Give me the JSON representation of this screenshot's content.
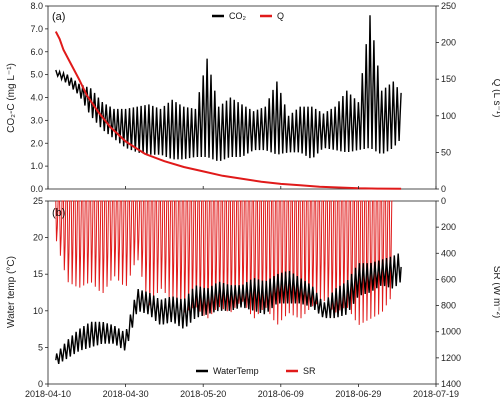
{
  "chart_data": [
    {
      "type": "line",
      "panel_label": "(a)",
      "ylabel_left": "CO₂-C (mg L⁻¹)",
      "ylabel_right": "Q (L s⁻¹)",
      "ylim_left": [
        0,
        8
      ],
      "yticks_left": [
        "0.0",
        "1.0",
        "2.0",
        "3.0",
        "4.0",
        "5.0",
        "6.0",
        "7.0",
        "8.0"
      ],
      "ylim_right": [
        0,
        250
      ],
      "yticks_right": [
        "0",
        "50",
        "100",
        "150",
        "200",
        "250"
      ],
      "legend_position": "top-center",
      "series": [
        {
          "name": "CO₂",
          "axis": "left",
          "color": "#000000",
          "x": [
            "2018-04-12",
            "2018-04-15",
            "2018-04-18",
            "2018-04-21",
            "2018-04-24",
            "2018-04-27",
            "2018-04-30",
            "2018-05-03",
            "2018-05-06",
            "2018-05-09",
            "2018-05-12",
            "2018-05-15",
            "2018-05-18",
            "2018-05-21",
            "2018-05-24",
            "2018-05-27",
            "2018-05-30",
            "2018-06-02",
            "2018-06-05",
            "2018-06-08",
            "2018-06-11",
            "2018-06-14",
            "2018-06-17",
            "2018-06-20",
            "2018-06-23",
            "2018-06-26",
            "2018-06-29",
            "2018-07-02",
            "2018-07-05",
            "2018-07-08",
            "2018-07-10"
          ],
          "y_low": [
            5.0,
            4.6,
            4.1,
            3.2,
            2.6,
            2.2,
            1.8,
            1.6,
            1.5,
            1.5,
            1.3,
            1.3,
            1.4,
            1.4,
            1.2,
            1.4,
            1.4,
            1.7,
            1.7,
            1.5,
            1.6,
            1.6,
            1.3,
            1.8,
            1.7,
            1.6,
            1.7,
            1.8,
            1.5,
            1.8,
            2.2
          ],
          "y_high": [
            5.2,
            5.0,
            4.6,
            4.4,
            3.8,
            3.5,
            3.5,
            3.6,
            3.7,
            3.5,
            3.9,
            3.6,
            3.5,
            5.7,
            3.6,
            4.0,
            3.7,
            3.4,
            3.6,
            4.7,
            3.2,
            3.6,
            3.6,
            3.3,
            3.6,
            4.3,
            3.8,
            7.6,
            4.3,
            4.7,
            4.2
          ]
        },
        {
          "name": "Q",
          "axis": "right",
          "color": "#e01a1a",
          "x": [
            "2018-04-12",
            "2018-04-13",
            "2018-04-14",
            "2018-04-16",
            "2018-04-18",
            "2018-04-20",
            "2018-04-23",
            "2018-04-26",
            "2018-04-30",
            "2018-05-05",
            "2018-05-10",
            "2018-05-15",
            "2018-05-20",
            "2018-05-25",
            "2018-05-30",
            "2018-06-04",
            "2018-06-09",
            "2018-06-14",
            "2018-06-19",
            "2018-06-24",
            "2018-06-29",
            "2018-07-04",
            "2018-07-10"
          ],
          "y": [
            215,
            205,
            190,
            170,
            150,
            128,
            105,
            85,
            65,
            48,
            38,
            30,
            24,
            18,
            14,
            10,
            7,
            5,
            3,
            2,
            1,
            0.5,
            0.3
          ]
        }
      ]
    },
    {
      "type": "line",
      "panel_label": "(b)",
      "ylabel_left": "Water temp (°C)",
      "ylabel_right": "SR (W m⁻²)",
      "ylim_left": [
        0,
        25
      ],
      "yticks_left": [
        "0",
        "5",
        "10",
        "15",
        "20",
        "25"
      ],
      "ylim_right": [
        1400,
        0
      ],
      "yticks_right": [
        "0",
        "200",
        "400",
        "600",
        "800",
        "1000",
        "1200",
        "1400"
      ],
      "xlim": [
        "2018-04-10",
        "2018-07-19"
      ],
      "xticks": [
        "2018-04-10",
        "2018-04-30",
        "2018-05-20",
        "2018-06-09",
        "2018-06-29",
        "2018-07-19"
      ],
      "legend_position": "bottom-center",
      "series": [
        {
          "name": "WaterTemp",
          "axis": "left",
          "color": "#000000",
          "x": [
            "2018-04-12",
            "2018-04-15",
            "2018-04-18",
            "2018-04-21",
            "2018-04-24",
            "2018-04-27",
            "2018-04-30",
            "2018-05-03",
            "2018-05-06",
            "2018-05-09",
            "2018-05-12",
            "2018-05-15",
            "2018-05-18",
            "2018-05-21",
            "2018-05-24",
            "2018-05-27",
            "2018-05-30",
            "2018-06-02",
            "2018-06-05",
            "2018-06-08",
            "2018-06-11",
            "2018-06-14",
            "2018-06-17",
            "2018-06-20",
            "2018-06-23",
            "2018-06-26",
            "2018-06-29",
            "2018-07-02",
            "2018-07-05",
            "2018-07-08",
            "2018-07-10"
          ],
          "y_low": [
            2.5,
            3.5,
            4.5,
            5.0,
            5.5,
            5.5,
            4.5,
            10.0,
            9.5,
            8.0,
            8.5,
            7.5,
            9.0,
            9.5,
            10.0,
            10.0,
            10.5,
            10.0,
            9.5,
            11.0,
            11.0,
            11.0,
            10.5,
            9.0,
            9.0,
            9.5,
            12.0,
            12.5,
            13.5,
            13.0,
            14.0
          ],
          "y_high": [
            4.0,
            6.0,
            7.5,
            8.5,
            8.5,
            8.0,
            7.0,
            13.0,
            12.5,
            11.5,
            12.0,
            11.5,
            13.5,
            13.0,
            14.0,
            13.5,
            13.5,
            14.5,
            14.0,
            15.0,
            15.5,
            14.5,
            13.5,
            11.0,
            13.0,
            14.0,
            16.5,
            16.5,
            17.0,
            17.5,
            18.0
          ]
        },
        {
          "name": "SR",
          "axis": "right",
          "color": "#e01a1a",
          "x": [
            "2018-04-12",
            "2018-04-15",
            "2018-04-18",
            "2018-04-21",
            "2018-04-24",
            "2018-04-27",
            "2018-04-30",
            "2018-05-03",
            "2018-05-06",
            "2018-05-09",
            "2018-05-12",
            "2018-05-15",
            "2018-05-18",
            "2018-05-21",
            "2018-05-24",
            "2018-05-27",
            "2018-05-30",
            "2018-06-02",
            "2018-06-05",
            "2018-06-08",
            "2018-06-11",
            "2018-06-14",
            "2018-06-17",
            "2018-06-20",
            "2018-06-23",
            "2018-06-26",
            "2018-06-29",
            "2018-07-02",
            "2018-07-05",
            "2018-07-08"
          ],
          "peak": [
            300,
            650,
            700,
            650,
            750,
            600,
            700,
            450,
            850,
            700,
            800,
            900,
            850,
            950,
            850,
            900,
            800,
            950,
            850,
            1000,
            900,
            950,
            850,
            800,
            900,
            850,
            1000,
            950,
            900,
            750
          ]
        }
      ]
    }
  ]
}
